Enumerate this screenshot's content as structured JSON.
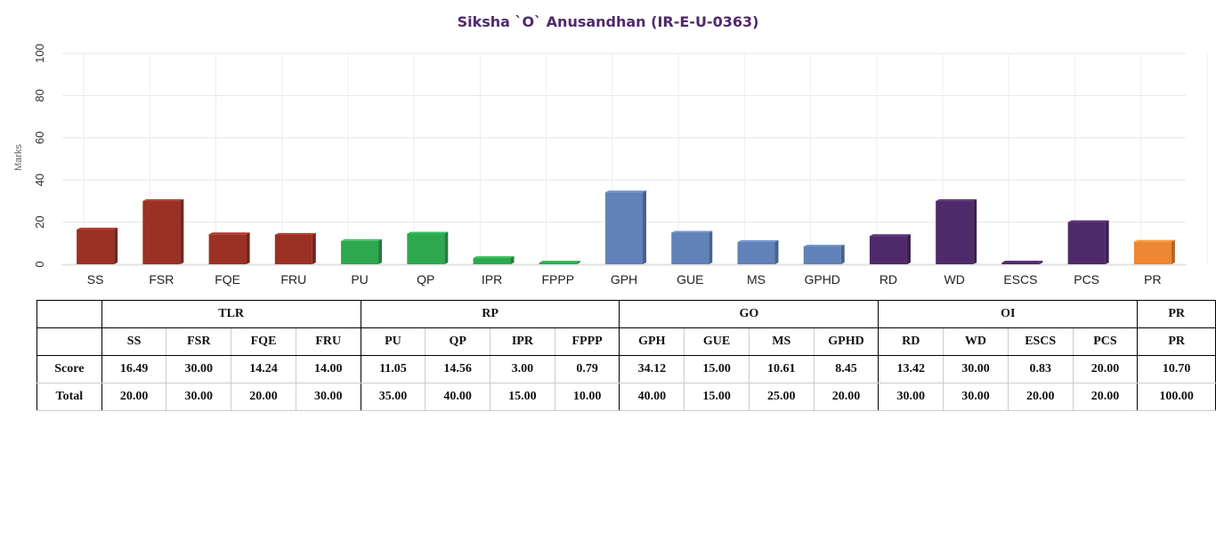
{
  "chart_data": {
    "type": "bar",
    "title": "Siksha `O` Anusandhan (IR-E-U-0363)",
    "ylabel": "Marks",
    "ylim": [
      0,
      100
    ],
    "yticks": [
      "0",
      "20",
      "40",
      "60",
      "80",
      "100"
    ],
    "grid": true,
    "categories": [
      "SS",
      "FSR",
      "FQE",
      "FRU",
      "PU",
      "QP",
      "IPR",
      "FPPP",
      "GPH",
      "GUE",
      "MS",
      "GPHD",
      "RD",
      "WD",
      "ESCS",
      "PCS",
      "PR"
    ],
    "values": [
      16.49,
      30.0,
      14.24,
      14.0,
      11.05,
      14.56,
      3.0,
      0.79,
      34.12,
      15.0,
      10.61,
      8.45,
      13.42,
      30.0,
      0.83,
      20.0,
      10.7
    ],
    "groups": [
      "TLR",
      "TLR",
      "TLR",
      "TLR",
      "RP",
      "RP",
      "RP",
      "RP",
      "GO",
      "GO",
      "GO",
      "GO",
      "OI",
      "OI",
      "OI",
      "OI",
      "PR"
    ],
    "group_colors": {
      "TLR": "#9b3025",
      "RP": "#2ea84e",
      "GO": "#6182b8",
      "OI": "#4f2a6b",
      "PR": "#ee8731"
    }
  },
  "table": {
    "groups": [
      {
        "label": "TLR",
        "span": 4
      },
      {
        "label": "RP",
        "span": 4
      },
      {
        "label": "GO",
        "span": 4
      },
      {
        "label": "OI",
        "span": 4
      },
      {
        "label": "PR",
        "span": 1
      }
    ],
    "headers": [
      "SS",
      "FSR",
      "FQE",
      "FRU",
      "PU",
      "QP",
      "IPR",
      "FPPP",
      "GPH",
      "GUE",
      "MS",
      "GPHD",
      "RD",
      "WD",
      "ESCS",
      "PCS",
      "PR"
    ],
    "rows": [
      {
        "label": "Score",
        "values": [
          "16.49",
          "30.00",
          "14.24",
          "14.00",
          "11.05",
          "14.56",
          "3.00",
          "0.79",
          "34.12",
          "15.00",
          "10.61",
          "8.45",
          "13.42",
          "30.00",
          "0.83",
          "20.00",
          "10.70"
        ]
      },
      {
        "label": "Total",
        "values": [
          "20.00",
          "30.00",
          "20.00",
          "30.00",
          "35.00",
          "40.00",
          "15.00",
          "10.00",
          "40.00",
          "15.00",
          "25.00",
          "20.00",
          "30.00",
          "30.00",
          "20.00",
          "20.00",
          "100.00"
        ]
      }
    ]
  }
}
